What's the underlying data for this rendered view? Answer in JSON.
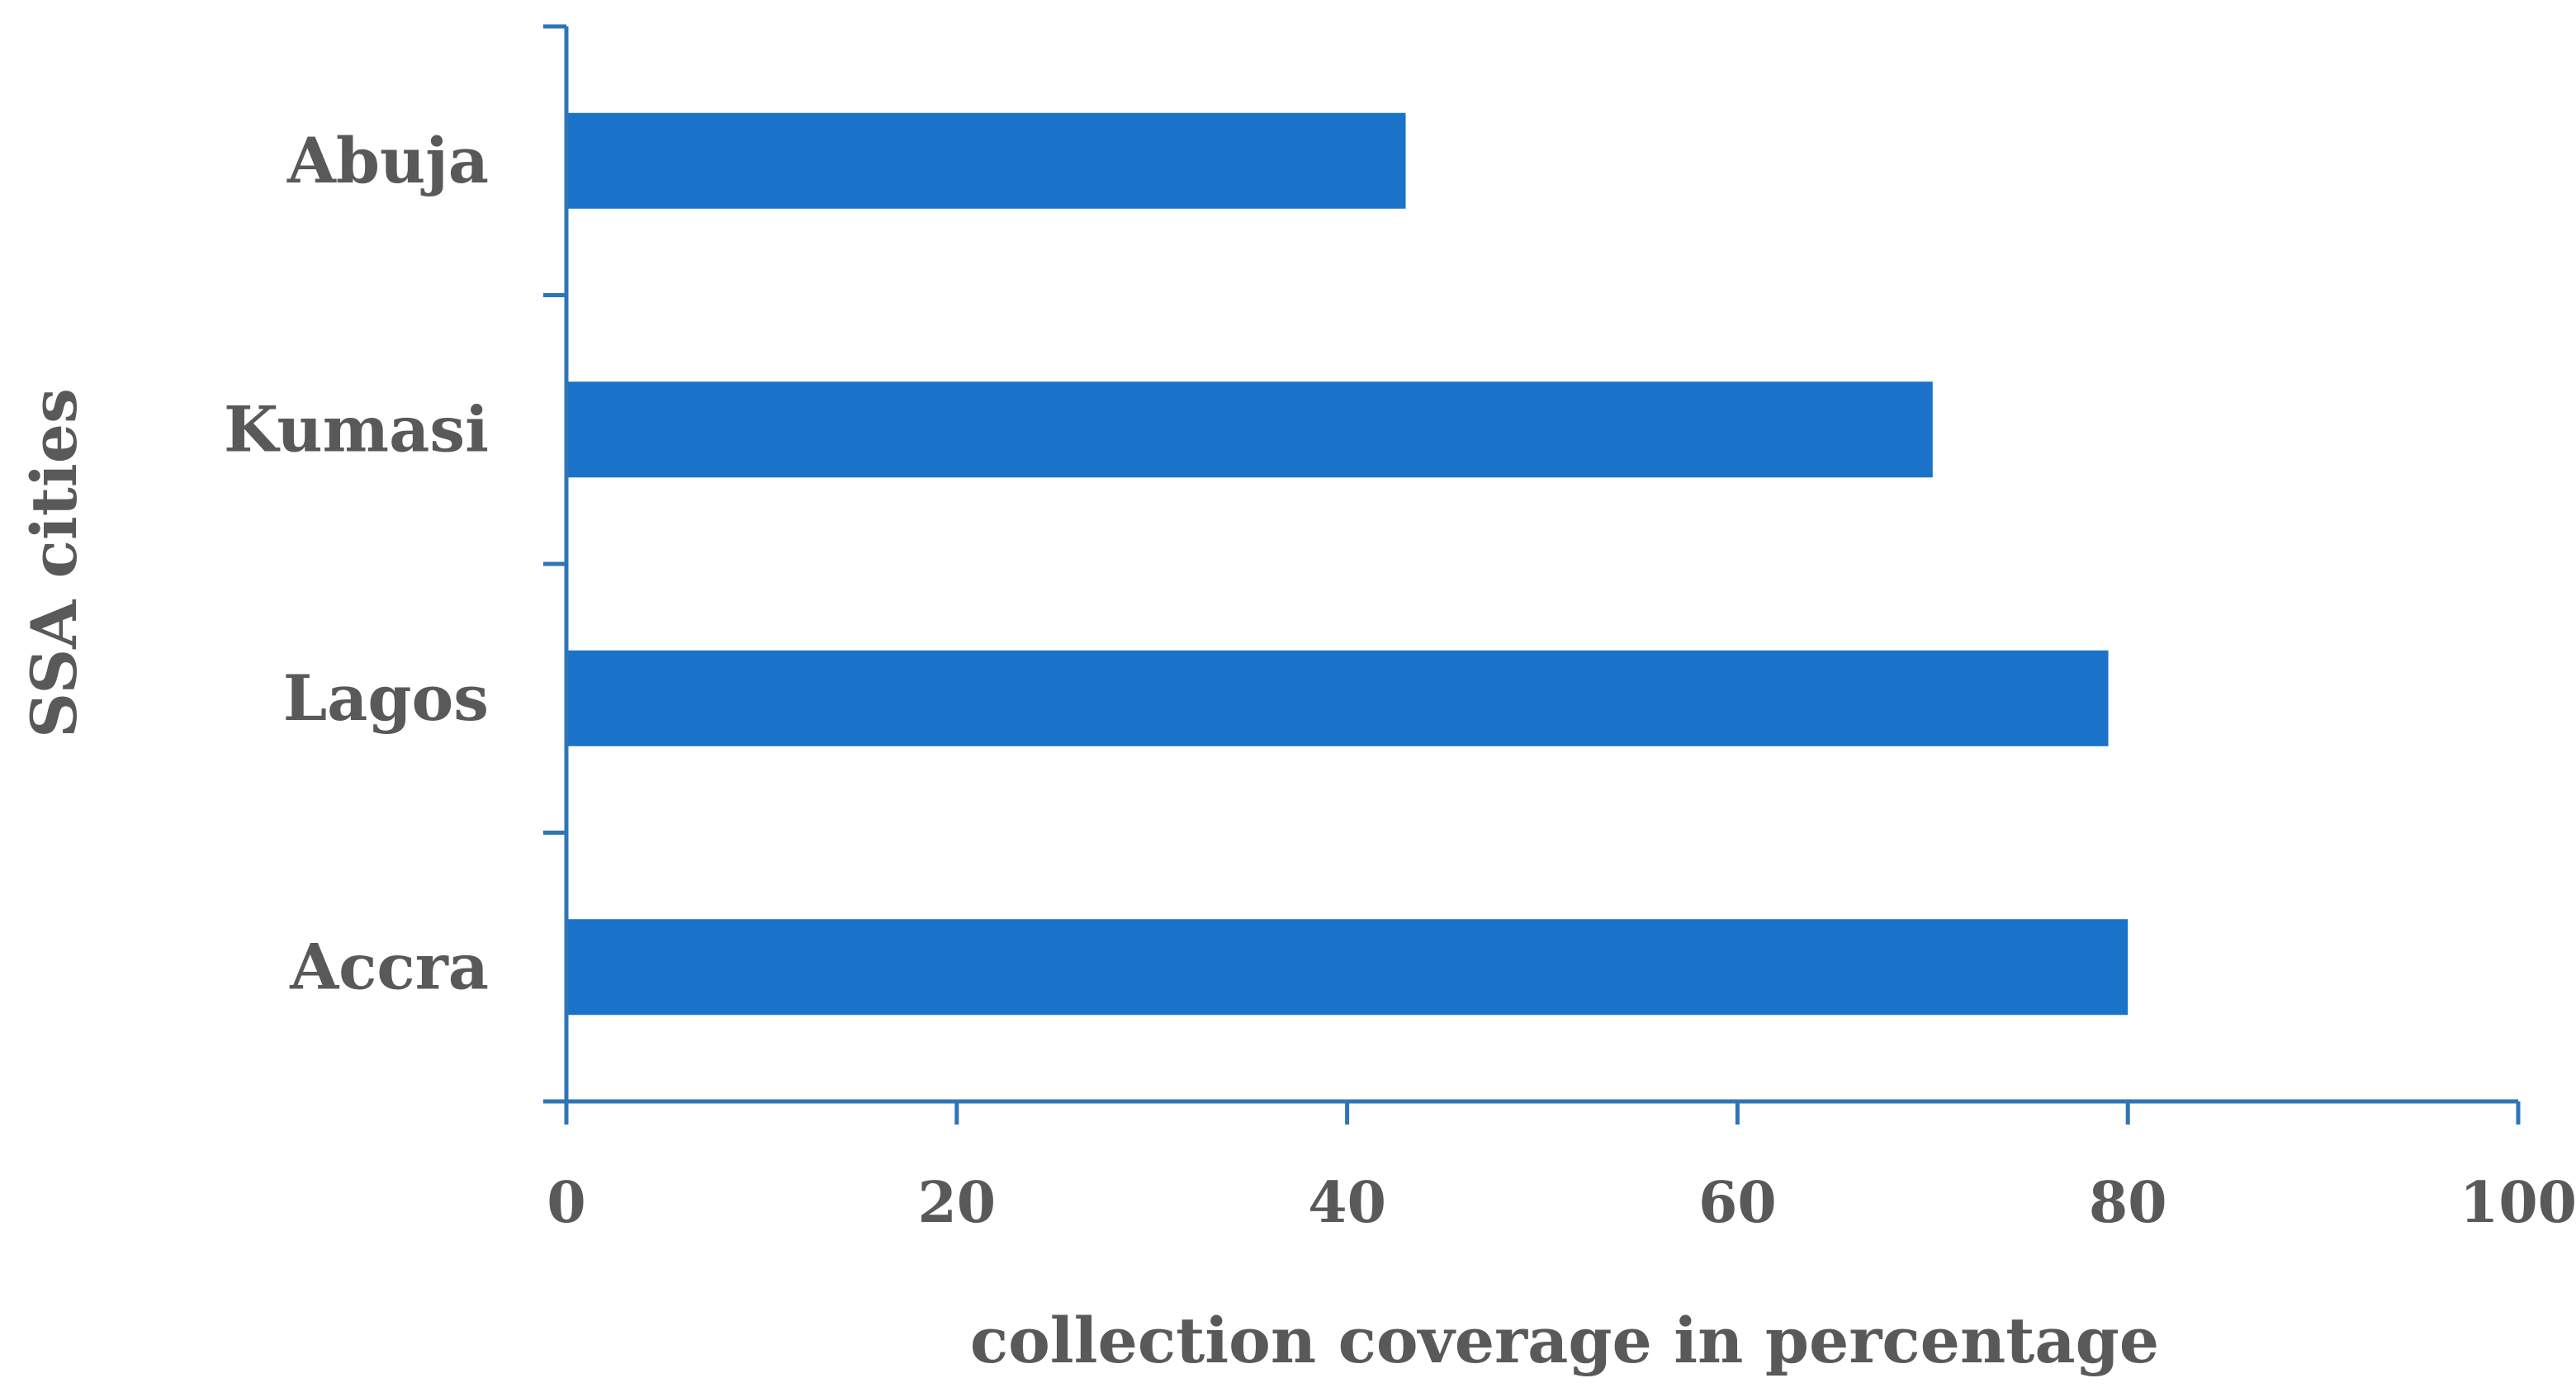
{
  "chart_data": {
    "type": "bar",
    "orientation": "horizontal",
    "categories": [
      "Abuja",
      "Kumasi",
      "Lagos",
      "Accra"
    ],
    "values": [
      43,
      70,
      79,
      80
    ],
    "xlabel": "collection coverage in percentage",
    "ylabel": "SSA cities",
    "xlim": [
      0,
      100
    ],
    "xticks": [
      "0",
      "20",
      "40",
      "60",
      "80",
      "100"
    ],
    "grid": false,
    "legend": "none",
    "colors": {
      "bar": "#1a73c8",
      "axis": "#2e75b6",
      "text": "#595959"
    }
  }
}
